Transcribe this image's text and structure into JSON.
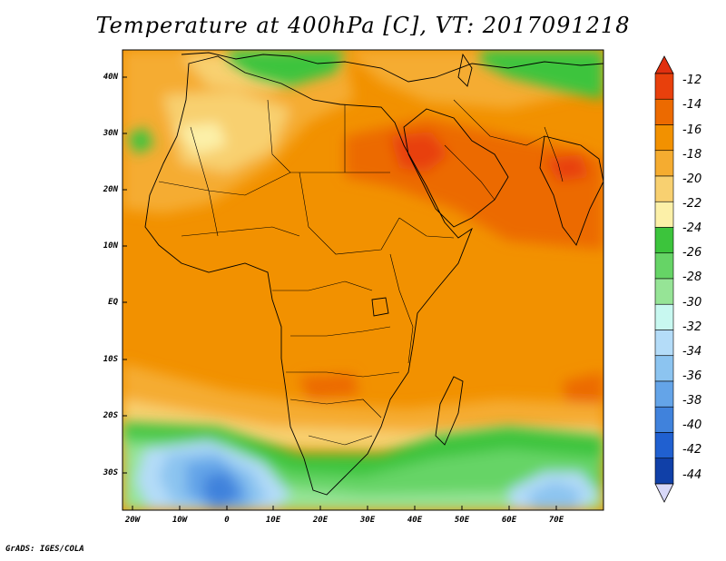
{
  "title": "Temperature at 400hPa [C], VT: 2017091218",
  "credit": "GrADS: IGES/COLA",
  "map": {
    "variable": "Temperature",
    "level": "400hPa",
    "units": "C",
    "valid_time": "2017091218",
    "lat_labels": [
      "40N",
      "30N",
      "20N",
      "10N",
      "EQ",
      "10S",
      "20S",
      "30S"
    ],
    "lon_labels": [
      "20W",
      "10W",
      "0",
      "10E",
      "20E",
      "30E",
      "40E",
      "50E",
      "60E",
      "70E"
    ],
    "extent": {
      "lon_min": -22,
      "lon_max": 80,
      "lat_min": -37,
      "lat_max": 45
    }
  },
  "colorbar": {
    "labels": [
      "-12",
      "-14",
      "-16",
      "-18",
      "-20",
      "-22",
      "-24",
      "-26",
      "-28",
      "-30",
      "-32",
      "-34",
      "-36",
      "-38",
      "-40",
      "-42",
      "-44"
    ],
    "colors": [
      "#e8400c",
      "#ec6a00",
      "#f29100",
      "#f5ac30",
      "#f8d070",
      "#fcf0a8",
      "#3cc43c",
      "#66d466",
      "#96e496",
      "#c8f8f0",
      "#b4dcf8",
      "#8cc4f0",
      "#64a4e8",
      "#4082dc",
      "#2060d0",
      "#1040a8",
      "#082080"
    ],
    "top_arrow_color": "#e03010",
    "bottom_arrow_color": "#d8d8f8"
  }
}
